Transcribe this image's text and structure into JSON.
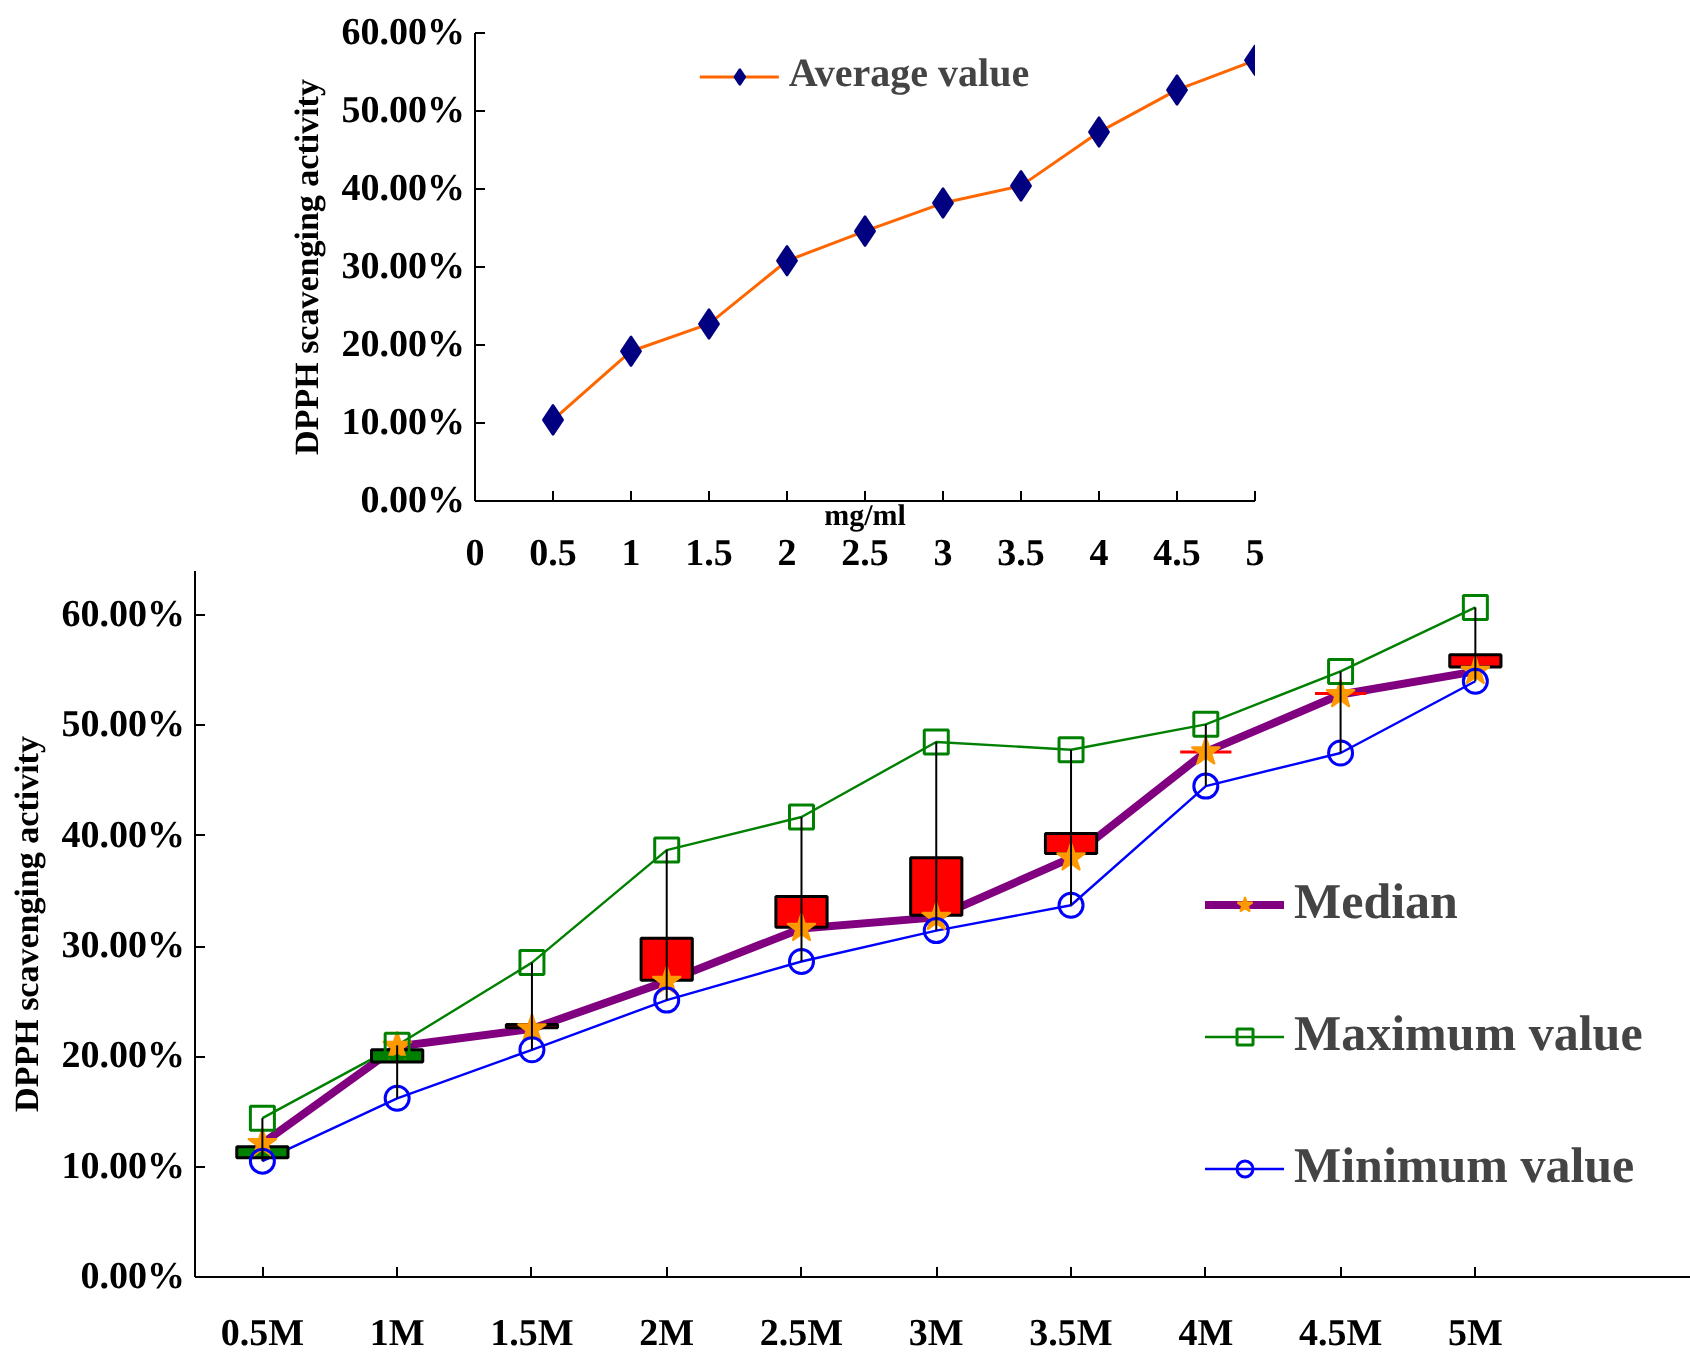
{
  "chart_data": [
    {
      "type": "line",
      "xlabel": "mg/ml",
      "ylabel": "DPPH scavenging activity",
      "x": [
        0.5,
        1,
        1.5,
        2,
        2.5,
        3,
        3.5,
        4,
        4.5,
        5
      ],
      "xlim": [
        0,
        5
      ],
      "xticks": [
        0,
        0.5,
        1,
        1.5,
        2,
        2.5,
        3,
        3.5,
        4,
        4.5,
        5
      ],
      "ylim": [
        0,
        60
      ],
      "yticks": [
        {
          "value": 0,
          "label": "0.00%"
        },
        {
          "value": 10,
          "label": "10.00%"
        },
        {
          "value": 20,
          "label": "20.00%"
        },
        {
          "value": 30,
          "label": "30.00%"
        },
        {
          "value": 40,
          "label": "40.00%"
        },
        {
          "value": 50,
          "label": "50.00%"
        },
        {
          "value": 60,
          "label": "60.00%"
        }
      ],
      "series": [
        {
          "name": "Average value",
          "color": "#ff6600",
          "colors": [
            "#000080",
            "#000080",
            "#000080",
            "#000080",
            "#000080",
            "#000080",
            "#000080",
            "#000080",
            "#000080",
            "#000080"
          ],
          "marker": "diamond",
          "values": [
            10.4,
            19.2,
            22.7,
            30.8,
            34.6,
            38.2,
            40.4,
            47.3,
            52.7,
            56.5
          ]
        }
      ],
      "legend": "top",
      "grid": false
    },
    {
      "type": "candlestick",
      "ylabel": "DPPH scavenging activity",
      "categories": [
        "0.5M",
        "1M",
        "1.5M",
        "2M",
        "2.5M",
        "3M",
        "3.5M",
        "4M",
        "4.5M",
        "5M"
      ],
      "ylim": [
        0,
        64
      ],
      "yticks": [
        {
          "value": 0,
          "label": "0.00%"
        },
        {
          "value": 10,
          "label": "10.00%"
        },
        {
          "value": 20,
          "label": "20.00%"
        },
        {
          "value": 30,
          "label": "30.00%"
        },
        {
          "value": 40,
          "label": "40.00%"
        },
        {
          "value": 50,
          "label": "50.00%"
        },
        {
          "value": 60,
          "label": "60.00%"
        }
      ],
      "ohlc": [
        [
          10.8,
          14.4,
          10.5,
          11.8
        ],
        [
          19.5,
          21.0,
          16.2,
          20.6
        ],
        [
          22.9,
          28.5,
          20.6,
          22.6
        ],
        [
          30.7,
          38.7,
          25.1,
          26.9
        ],
        [
          34.5,
          41.7,
          28.6,
          31.7
        ],
        [
          38.0,
          48.5,
          31.4,
          32.8
        ],
        [
          40.2,
          47.8,
          33.7,
          38.4
        ],
        [
          47.6,
          50.1,
          44.5,
          47.6
        ],
        [
          52.9,
          54.9,
          47.5,
          52.9
        ],
        [
          56.4,
          60.7,
          54.0,
          55.3
        ]
      ],
      "colors": [
        "#008000",
        "#008000",
        "#ff0000",
        "#ff0000",
        "#ff0000",
        "#ff0000",
        "#ff0000",
        "#ff0000",
        "#ff0000",
        "#ff0000"
      ],
      "series": [
        {
          "type": "line",
          "name": "Median",
          "color": "#800080",
          "colors": [
            "#ff9900",
            "#ff9900",
            "#ff9900",
            "#ff9900",
            "#ff9900",
            "#ff9900",
            "#ff9900",
            "#ff9900",
            "#ff9900",
            "#ff9900"
          ],
          "marker": "star",
          "values": [
            12.1,
            20.9,
            22.5,
            26.8,
            31.6,
            32.6,
            38.0,
            47.6,
            52.8,
            54.9
          ]
        },
        {
          "type": "line",
          "name": "Maximum value",
          "color": "#008000",
          "marker": "square",
          "values": [
            14.4,
            21.0,
            28.5,
            38.7,
            41.7,
            48.5,
            47.8,
            50.1,
            54.9,
            60.7
          ]
        },
        {
          "type": "line",
          "name": "Minimum value",
          "color": "#0000ff",
          "marker": "circle",
          "values": [
            10.5,
            16.2,
            20.6,
            25.1,
            28.6,
            31.4,
            33.7,
            44.5,
            47.5,
            54.0
          ]
        }
      ],
      "legend": "right",
      "grid": false
    }
  ]
}
